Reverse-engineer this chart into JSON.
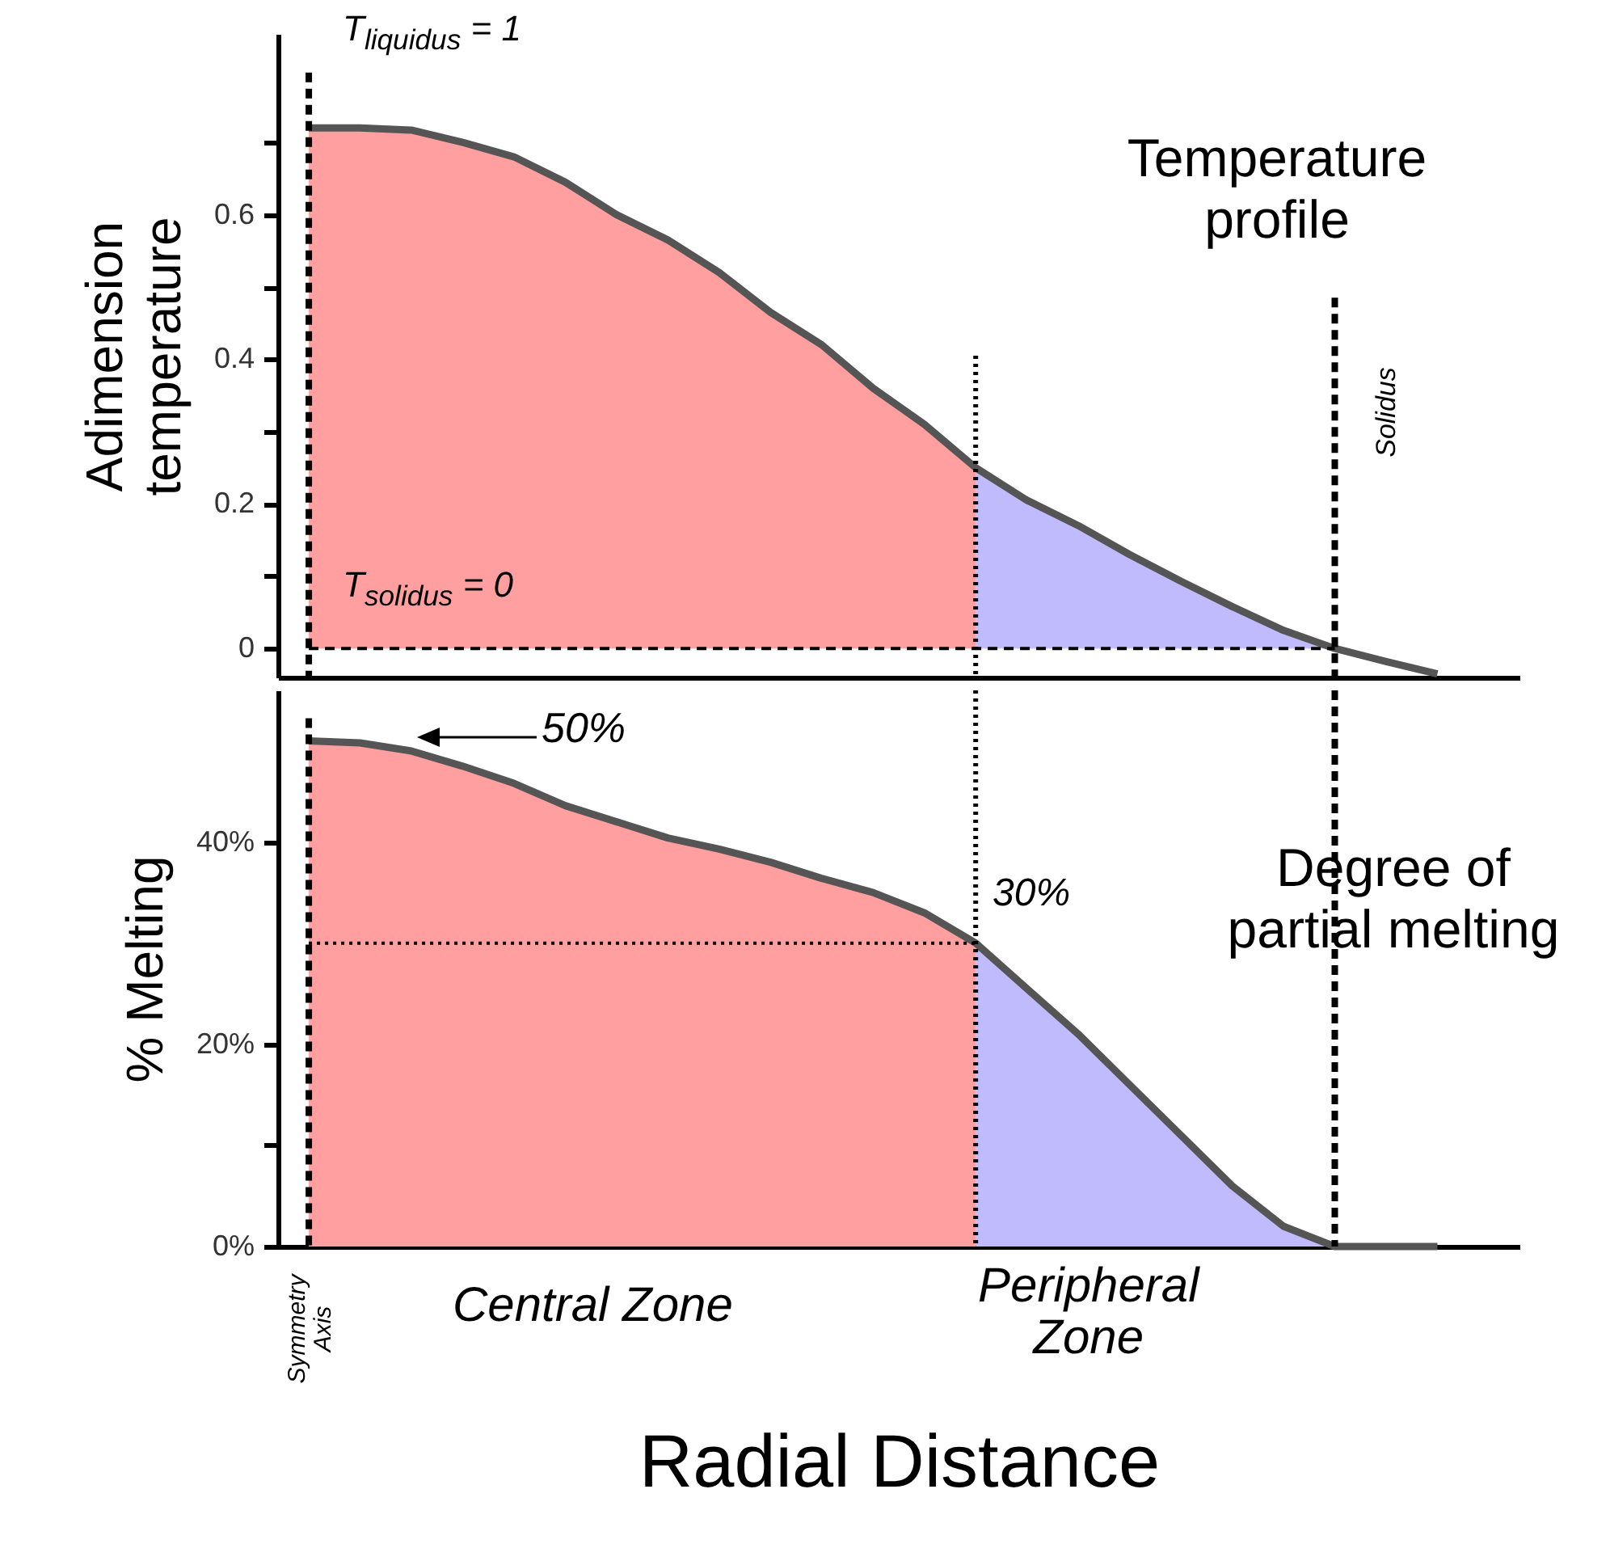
{
  "chart_data": [
    {
      "type": "area",
      "title": "Temperature\nprofile",
      "ylabel": "Adimension\ntemperature",
      "ylim": [
        -0.04,
        0.85
      ],
      "categories": [
        null,
        null,
        null,
        null,
        null,
        null,
        null,
        null,
        null,
        null,
        null,
        null,
        null,
        null,
        null,
        null,
        null,
        null,
        null,
        null,
        null,
        null,
        null
      ],
      "yticks": [
        0,
        {
          "value": 0.1,
          "label": null
        },
        0.2,
        {
          "value": 0.3,
          "label": null
        },
        0.4,
        {
          "value": 0.5,
          "label": null
        },
        0.6,
        {
          "value": 0.7,
          "label": null
        }
      ],
      "tick_labels": "y",
      "series": [
        {
          "color": "#ff9f9f",
          "values": [
            0.72,
            0.72,
            0.717,
            0.7,
            0.68,
            0.645,
            0.6,
            0.565,
            0.52,
            0.465,
            0.42,
            0.36,
            0.31,
            0.25,
            null,
            null,
            null,
            null,
            null,
            null,
            null,
            null,
            null
          ]
        },
        {
          "color": "#c0bbfc",
          "values": [
            null,
            null,
            null,
            null,
            null,
            null,
            null,
            null,
            null,
            null,
            null,
            null,
            null,
            0.25,
            0.205,
            0.17,
            0.13,
            0.093,
            0.058,
            0.025,
            0,
            null,
            null
          ]
        },
        {
          "type": "line",
          "color": "#555555",
          "line_style": "solid",
          "values": [
            0.72,
            0.72,
            0.717,
            0.7,
            0.68,
            0.645,
            0.6,
            0.565,
            0.52,
            0.465,
            0.42,
            0.36,
            0.31,
            0.25,
            0.205,
            0.17,
            0.13,
            0.093,
            0.058,
            0.025,
            0,
            -0.018,
            -0.035
          ]
        },
        {
          "type": "line",
          "color": "#000000",
          "line_style": "dashed",
          "values": [
            0,
            0,
            0,
            0,
            0,
            0,
            0,
            0,
            0,
            0,
            0,
            0,
            0,
            0,
            0,
            0,
            0,
            0,
            0,
            0,
            0,
            null,
            null
          ]
        }
      ],
      "annotations": [
        "T$_{liquidus}$ = 1",
        "T$_{solidus}$ = 0",
        "Solidus"
      ]
    },
    {
      "type": "area",
      "title": "Degree of\npartial melting",
      "ylabel": "% Melting",
      "xlabel": "Radial Distance",
      "ylim": [
        0,
        55
      ],
      "categories": [
        null,
        null,
        null,
        null,
        null,
        null,
        null,
        null,
        null,
        null,
        null,
        null,
        null,
        null,
        null,
        null,
        null,
        null,
        null,
        null,
        null,
        null,
        null
      ],
      "yticks": [
        {
          "value": 0,
          "label": "0%"
        },
        {
          "value": 10,
          "label": null
        },
        {
          "value": 20,
          "label": "20%"
        },
        {
          "value": 40,
          "label": "40%"
        }
      ],
      "tick_labels": "y",
      "series": [
        {
          "color": "#ff9f9f",
          "values": [
            50,
            49.8,
            49,
            47.5,
            45.8,
            43.6,
            42,
            40.4,
            39.3,
            38,
            36.4,
            35,
            33,
            30,
            null,
            null,
            null,
            null,
            null,
            null,
            null,
            null,
            null
          ]
        },
        {
          "color": "#c0bbfc",
          "values": [
            null,
            null,
            null,
            null,
            null,
            null,
            null,
            null,
            null,
            null,
            null,
            null,
            null,
            30,
            25.5,
            21,
            16,
            11,
            6,
            2,
            0,
            null,
            null
          ]
        },
        {
          "type": "line",
          "color": "#555555",
          "line_style": "solid",
          "values": [
            50,
            49.8,
            49,
            47.5,
            45.8,
            43.6,
            42,
            40.4,
            39.3,
            38,
            36.4,
            35,
            33,
            30,
            25.5,
            21,
            16,
            11,
            6,
            2,
            0,
            0,
            0
          ]
        },
        {
          "type": "line",
          "color": "#000000",
          "line_style": "dotted",
          "values": [
            30,
            30,
            30,
            30,
            30,
            30,
            30,
            30,
            30,
            30,
            30,
            30,
            30,
            30,
            null,
            null,
            null,
            null,
            null,
            null,
            null,
            null,
            null
          ]
        }
      ],
      "annotations": [
        "50%",
        "30%",
        "Central Zone",
        "Peripheral\nZone",
        "Symmetry\nAxis"
      ]
    }
  ]
}
